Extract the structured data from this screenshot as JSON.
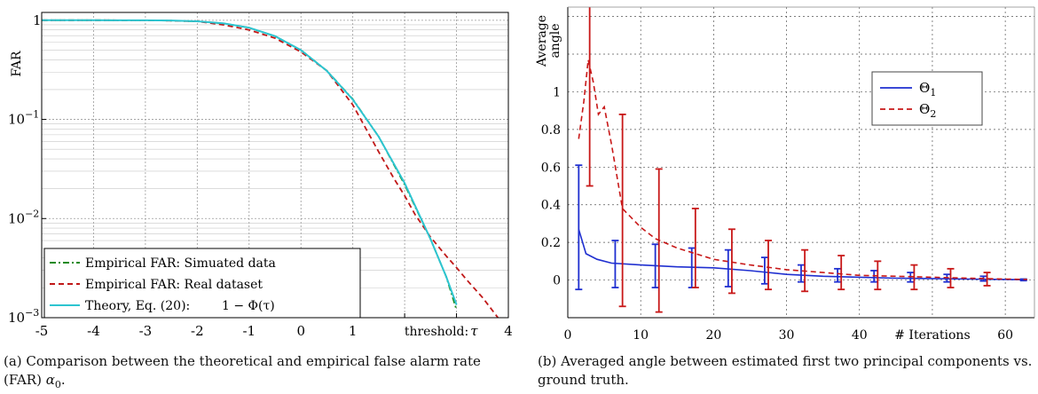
{
  "colors": {
    "green": "#1a8a1a",
    "darkred": "#c01818",
    "cyan": "#2cc4d0",
    "blue": "#1f2fd0",
    "red": "#c81818",
    "grid": "#9a9a9a",
    "axis": "#000000"
  },
  "captions": {
    "a_prefix": "(a) Comparison between the theoretical and empirical false alarm rate (FAR)",
    "a_symbol": "α",
    "a_sub": "0",
    "a_suffix": ".",
    "b": "(b) Averaged angle between estimated first two principal components vs. ground truth."
  },
  "chart_data": [
    {
      "type": "line",
      "ylabel": "FAR",
      "xlabel": "threshold: τ",
      "log_y": true,
      "xlim": [
        -5,
        4
      ],
      "ylim": [
        0.001,
        1.2
      ],
      "x_ticks": [
        "-5",
        "-4",
        "-3",
        "-2",
        "-1",
        "0",
        "1",
        "4"
      ],
      "y_tick_labels": [
        {
          "value": 1,
          "base": "1",
          "exp": ""
        },
        {
          "value": 0.1,
          "base": "10",
          "exp": "−1"
        },
        {
          "value": 0.01,
          "base": "10",
          "exp": "−2"
        },
        {
          "value": 0.001,
          "base": "10",
          "exp": "−3"
        }
      ],
      "grid": true,
      "legend_position": "bottom-left",
      "legend_formula": "1 − Φ(τ)",
      "series": [
        {
          "name": "Empirical FAR: Simuated data",
          "style": "dashdot",
          "color": "#1a8a1a",
          "x": [
            -5,
            -4,
            -3,
            -2.5,
            -2,
            -1.5,
            -1,
            -0.5,
            0,
            0.5,
            1,
            1.5,
            2,
            2.5,
            2.8,
            3.0
          ],
          "y": [
            1.0,
            1.0,
            0.998,
            0.99,
            0.975,
            0.93,
            0.84,
            0.69,
            0.5,
            0.31,
            0.16,
            0.067,
            0.022,
            0.0062,
            0.0026,
            0.0012
          ]
        },
        {
          "name": "Empirical FAR: Real dataset",
          "style": "dashed",
          "color": "#c01818",
          "x": [
            -5,
            -4,
            -3,
            -2.5,
            -2,
            -1.5,
            -1,
            -0.5,
            0,
            0.5,
            1,
            1.5,
            1.8,
            2.0,
            2.2,
            2.5,
            2.8,
            3.0,
            3.2,
            3.5,
            3.8
          ],
          "y": [
            1.0,
            1.0,
            0.998,
            0.99,
            0.975,
            0.9,
            0.8,
            0.66,
            0.48,
            0.31,
            0.14,
            0.047,
            0.025,
            0.017,
            0.011,
            0.0065,
            0.0042,
            0.0032,
            0.0024,
            0.0016,
            0.001
          ]
        },
        {
          "name": "Theory, Eq. (20):",
          "style": "solid",
          "color": "#2cc4d0",
          "x": [
            -5,
            -4,
            -3,
            -2.5,
            -2,
            -1.5,
            -1,
            -0.5,
            0,
            0.5,
            1,
            1.5,
            2,
            2.5,
            2.8,
            3.0
          ],
          "y": [
            1.0,
            1.0,
            0.9987,
            0.9938,
            0.9772,
            0.9332,
            0.8413,
            0.6915,
            0.5,
            0.3085,
            0.1587,
            0.0668,
            0.0228,
            0.0062,
            0.0026,
            0.00135
          ]
        }
      ]
    },
    {
      "type": "line",
      "ylabel": "Average angle",
      "xlabel": "# Iterations",
      "xlim": [
        0,
        64
      ],
      "ylim": [
        -0.2,
        1.45
      ],
      "x_ticks": [
        "0",
        "10",
        "20",
        "30",
        "40",
        "60"
      ],
      "y_ticks": [
        "0",
        "0.2",
        "0.4",
        "0.6",
        "0.8",
        "1"
      ],
      "grid": true,
      "legend_position": "top-right",
      "series": [
        {
          "name": "Θ1",
          "style": "solid",
          "color": "#1f2fd0",
          "x": [
            1.5,
            2.5,
            4,
            6,
            10,
            15,
            20,
            25,
            30,
            35,
            40,
            45,
            50,
            55,
            60,
            63
          ],
          "y": [
            0.27,
            0.14,
            0.11,
            0.09,
            0.08,
            0.07,
            0.065,
            0.05,
            0.03,
            0.02,
            0.015,
            0.01,
            0.008,
            0.005,
            0.003,
            0.002
          ],
          "error_bars": {
            "x": [
              1.5,
              6.5,
              12,
              17,
              22,
              27,
              32,
              37,
              42,
              47,
              52,
              57,
              62.5
            ],
            "center": [
              0.27,
              0.085,
              0.075,
              0.068,
              0.062,
              0.045,
              0.025,
              0.02,
              0.015,
              0.01,
              0.008,
              0.005,
              0.002
            ],
            "low": [
              -0.05,
              -0.04,
              -0.04,
              -0.04,
              -0.035,
              -0.02,
              -0.01,
              -0.01,
              -0.01,
              -0.01,
              -0.01,
              -0.005,
              -0.003
            ],
            "high": [
              0.61,
              0.21,
              0.19,
              0.17,
              0.16,
              0.12,
              0.08,
              0.06,
              0.05,
              0.04,
              0.03,
              0.02,
              0.005
            ]
          }
        },
        {
          "name": "Θ2",
          "style": "dashed",
          "color": "#c81818",
          "x": [
            1.5,
            2.2,
            2.8,
            3.5,
            4.2,
            5,
            6,
            7.5,
            10,
            12,
            15,
            20,
            25,
            30,
            35,
            40,
            45,
            50,
            55,
            60,
            63
          ],
          "y": [
            0.75,
            0.95,
            1.17,
            1.05,
            0.88,
            0.92,
            0.72,
            0.38,
            0.28,
            0.22,
            0.17,
            0.11,
            0.08,
            0.055,
            0.04,
            0.025,
            0.02,
            0.015,
            0.01,
            0.005,
            0.003
          ],
          "error_bars": {
            "x": [
              3,
              7.5,
              12.5,
              17.5,
              22.5,
              27.5,
              32.5,
              37.5,
              42.5,
              47.5,
              52.5,
              57.5
            ],
            "center": [
              1.17,
              0.38,
              0.22,
              0.11,
              0.09,
              0.07,
              0.05,
              0.035,
              0.025,
              0.02,
              0.015,
              0.01
            ],
            "low": [
              0.5,
              -0.14,
              -0.17,
              -0.04,
              -0.07,
              -0.05,
              -0.06,
              -0.05,
              -0.05,
              -0.05,
              -0.04,
              -0.03
            ],
            "high": [
              1.5,
              0.88,
              0.59,
              0.38,
              0.27,
              0.21,
              0.16,
              0.13,
              0.1,
              0.08,
              0.06,
              0.04
            ]
          }
        }
      ]
    }
  ]
}
